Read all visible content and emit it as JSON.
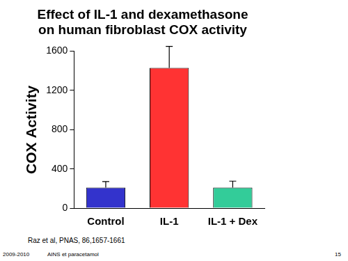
{
  "chart_data": {
    "type": "bar",
    "title": [
      "Effect of IL-1 and dexamethasone",
      "on human fibroblast COX activity"
    ],
    "y_label": "COX Activity",
    "categories": [
      "Control",
      "IL-1",
      "IL-1 + Dex"
    ],
    "values": [
      210,
      1430,
      210
    ],
    "errors": [
      60,
      220,
      65
    ],
    "colors": [
      "#3333cc",
      "#ff3333",
      "#33cc99"
    ],
    "ylim": [
      0,
      1600
    ],
    "yticks": [
      0,
      400,
      800,
      1200,
      1600
    ],
    "grid": false,
    "annotations": [
      "Raz et al, PNAS, 86,1657-1661",
      "2009-2010",
      "AINS et paracetamol",
      "15"
    ]
  }
}
